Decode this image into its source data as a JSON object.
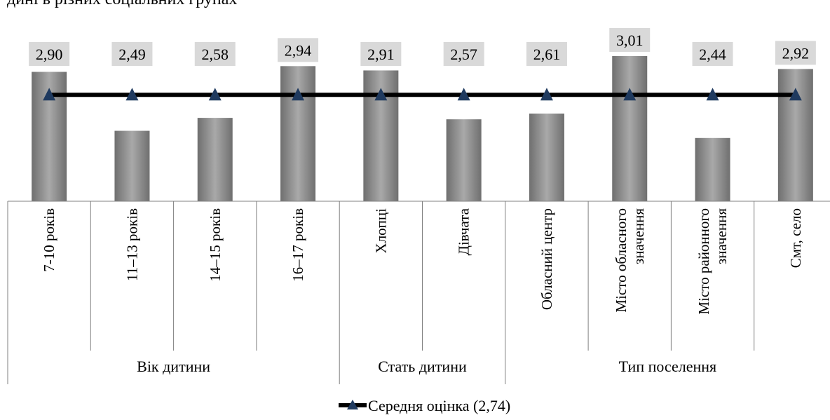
{
  "header_fragment": "дині в різних соціальних групах",
  "chart_data": {
    "type": "bar",
    "categories": [
      [
        "7-10 років"
      ],
      [
        "11–13 років"
      ],
      [
        "14–15 років"
      ],
      [
        "16–17 років"
      ],
      [
        "Хлопці"
      ],
      [
        "Дівчата"
      ],
      [
        "Обласний центр"
      ],
      [
        "Місто обласного",
        "значення"
      ],
      [
        "Місто районного",
        "значення"
      ],
      [
        "Смт, село"
      ]
    ],
    "values": [
      2.9,
      2.49,
      2.58,
      2.94,
      2.91,
      2.57,
      2.61,
      3.01,
      2.44,
      2.92
    ],
    "value_labels": [
      "2,90",
      "2,49",
      "2,58",
      "2,94",
      "2,91",
      "2,57",
      "2,61",
      "3,01",
      "2,44",
      "2,92"
    ],
    "groups": [
      {
        "label": "Вік дитини",
        "count": 4
      },
      {
        "label": "Стать дитини",
        "count": 2
      },
      {
        "label": "Тип поселення",
        "count": 4
      }
    ],
    "mean": {
      "value": 2.74,
      "name": "Середня оцінка (2,74)"
    },
    "legend_position": "bottom",
    "colors": {
      "bar": "#808080",
      "bar_light": "#a6a6a6",
      "line": "#000000",
      "marker": "#1f3a5f",
      "label_bg": "#d9d9d9",
      "grid": "#808080"
    }
  }
}
